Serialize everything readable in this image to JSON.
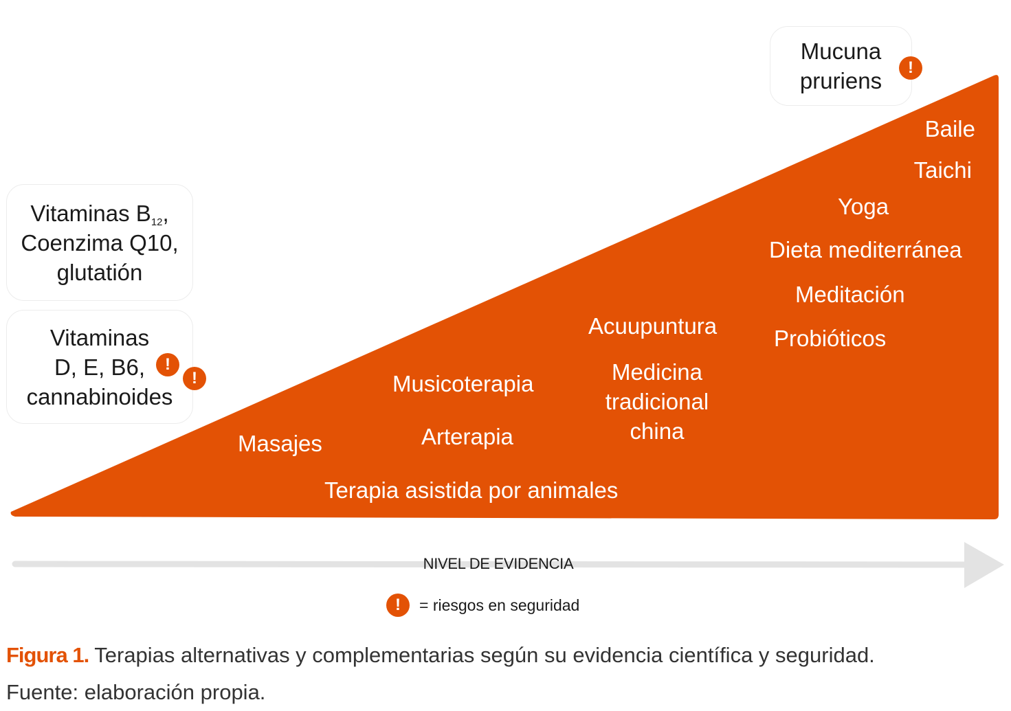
{
  "colors": {
    "accent": "#e35205",
    "arrow": "#e3e3e3",
    "box_border": "#ececec"
  },
  "boxes": {
    "vitaminas_b": {
      "line1_main": "Vitaminas B",
      "line1_sub": "12",
      "line1_tail": ",",
      "line2": "Coenzima Q10,",
      "line3": "glutatión"
    },
    "vitaminas_d": {
      "line1": "Vitaminas",
      "line2": "D, E, B6,",
      "line3": "cannabinoides",
      "warning_icon": "exclamation-icon"
    },
    "mucuna": {
      "line1": "Mucuna",
      "line2": "pruriens",
      "warning_icon": "exclamation-icon"
    }
  },
  "therapies": {
    "baile": "Baile",
    "taichi": "Taichi",
    "yoga": "Yoga",
    "dieta": "Dieta mediterránea",
    "meditacion": "Meditación",
    "probioticos": "Probióticos",
    "acupuntura": "Acuupuntura",
    "medicina_line1": "Medicina",
    "medicina_line2": "tradicional",
    "medicina_line3": "china",
    "musicoterapia": "Musicoterapia",
    "arterapia": "Arterapia",
    "masajes": "Masajes",
    "terapia_animales": "Terapia asistida por animales"
  },
  "axis": {
    "label": "NIVEL DE EVIDENCIA"
  },
  "legend": {
    "icon": "exclamation-icon",
    "text": "= riesgos en seguridad"
  },
  "caption": {
    "figure_label": "Figura 1.",
    "title": " Terapias alternativas y complementarias según su evidencia científica y seguridad.",
    "source": "Fuente: elaboración propia."
  }
}
